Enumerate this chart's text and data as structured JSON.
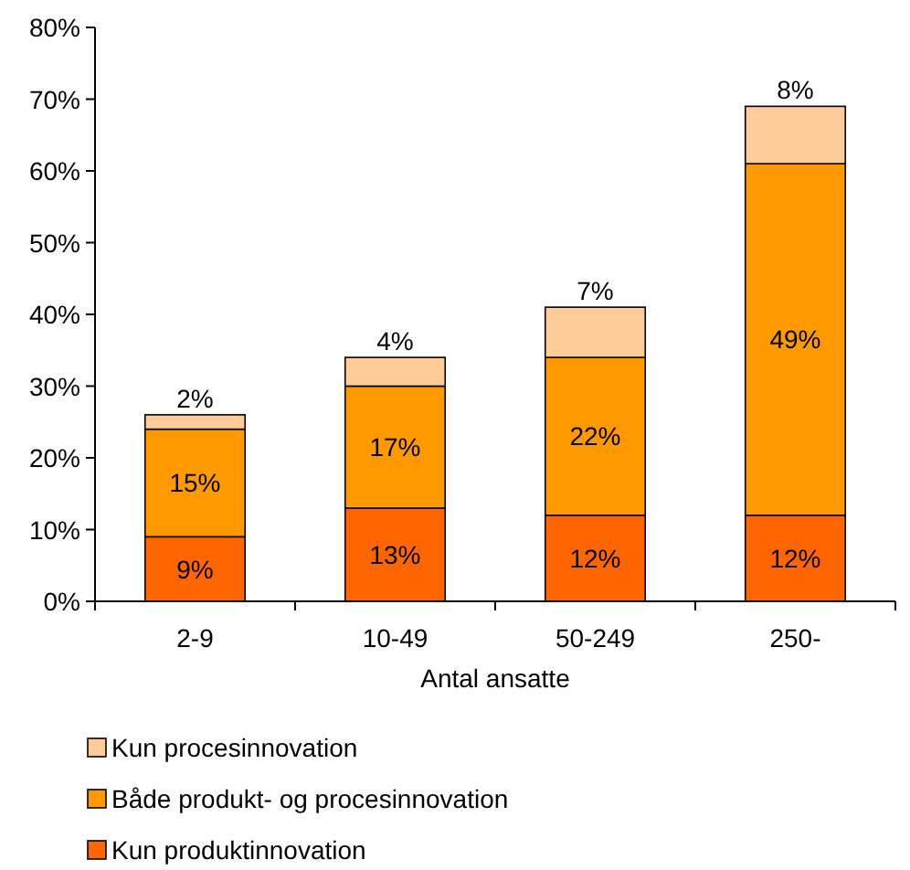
{
  "chart_data": {
    "type": "bar",
    "stacked": true,
    "xlabel": "Antal ansatte",
    "categories": [
      "2-9",
      "10-49",
      "50-249",
      "250-"
    ],
    "series": [
      {
        "name": "Kun produktinnovation",
        "color": "#ff6600",
        "values": [
          9,
          13,
          12,
          12
        ],
        "value_labels": [
          "9%",
          "13%",
          "12%",
          "12%"
        ]
      },
      {
        "name": "Både produkt- og procesinnovation",
        "color": "#ff9900",
        "values": [
          15,
          17,
          22,
          49
        ],
        "value_labels": [
          "15%",
          "17%",
          "22%",
          "49%"
        ]
      },
      {
        "name": "Kun procesinnovation",
        "color": "#ffcc99",
        "values": [
          2,
          4,
          7,
          8
        ],
        "value_labels": [
          "2%",
          "4%",
          "7%",
          "8%"
        ]
      }
    ],
    "ylim": [
      0,
      80
    ],
    "yticks": [
      {
        "value": 0,
        "label": "0%"
      },
      {
        "value": 10,
        "label": "10%"
      },
      {
        "value": 20,
        "label": "20%"
      },
      {
        "value": 30,
        "label": "30%"
      },
      {
        "value": 40,
        "label": "40%"
      },
      {
        "value": 50,
        "label": "50%"
      },
      {
        "value": 60,
        "label": "60%"
      },
      {
        "value": 70,
        "label": "70%"
      },
      {
        "value": 80,
        "label": "80%"
      }
    ],
    "legend": "bottom",
    "grid": false
  }
}
